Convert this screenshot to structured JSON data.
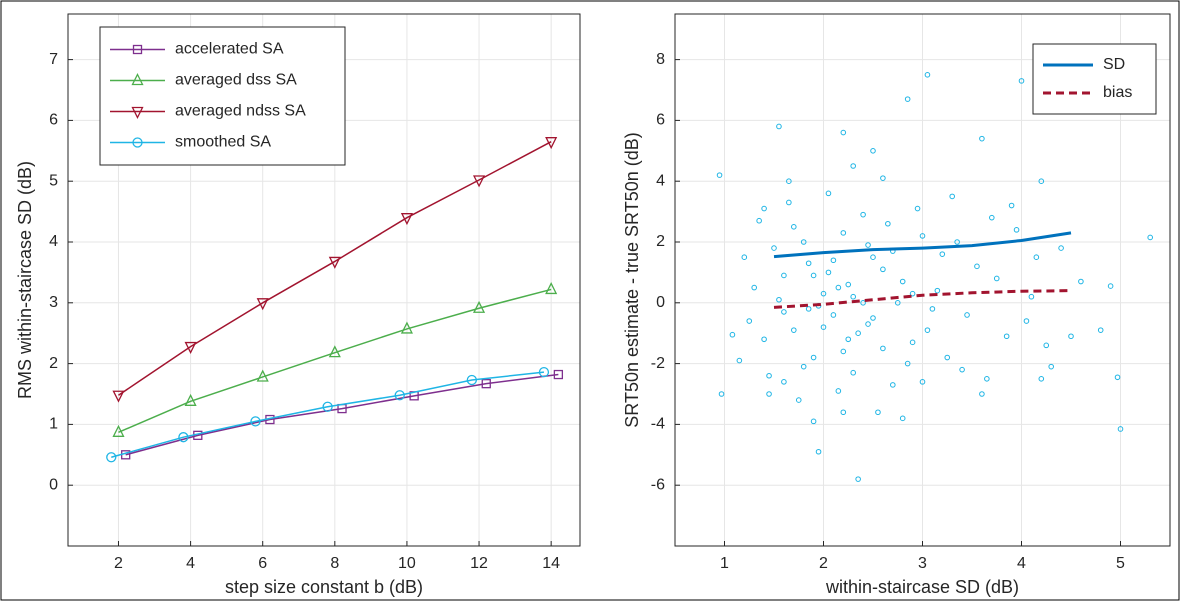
{
  "chart_data": [
    {
      "type": "line",
      "xlabel": "step size constant b   (dB)",
      "ylabel": "RMS within-staircase SD   (dB)",
      "xlim": [
        0.6,
        14.8
      ],
      "ylim": [
        -1,
        7.75
      ],
      "xticks": [
        2,
        4,
        6,
        8,
        10,
        12,
        14
      ],
      "yticks": [
        0,
        1,
        2,
        3,
        4,
        5,
        6,
        7
      ],
      "grid": true,
      "legend": "northwest",
      "series": [
        {
          "name": "accelerated SA",
          "color": "#7e2f8e",
          "marker": "square",
          "x": [
            2.2,
            4.2,
            6.2,
            8.2,
            10.2,
            12.2,
            14.2
          ],
          "values": [
            0.5,
            0.82,
            1.08,
            1.26,
            1.47,
            1.67,
            1.82
          ]
        },
        {
          "name": "averaged dss SA",
          "color": "#4cae4c",
          "marker": "triangle-up",
          "x": [
            2,
            4,
            6,
            8,
            10,
            12,
            14
          ],
          "values": [
            0.87,
            1.38,
            1.78,
            2.18,
            2.57,
            2.91,
            3.22
          ]
        },
        {
          "name": "averaged ndss SA",
          "color": "#a2142f",
          "marker": "triangle-down",
          "x": [
            2,
            4,
            6,
            8,
            10,
            12,
            14
          ],
          "values": [
            1.48,
            2.28,
            3.0,
            3.68,
            4.4,
            5.02,
            5.65
          ]
        },
        {
          "name": "smoothed SA",
          "color": "#1fb5e5",
          "marker": "circle",
          "x": [
            1.8,
            3.8,
            5.8,
            7.8,
            9.8,
            11.8,
            13.8
          ],
          "values": [
            0.46,
            0.79,
            1.05,
            1.29,
            1.48,
            1.73,
            1.86
          ]
        }
      ]
    },
    {
      "type": "scatter",
      "xlabel": "within-staircase SD   (dB)",
      "ylabel": "SRT50n estimate - true SRT50n   (dB)",
      "xlim": [
        0.5,
        5.5
      ],
      "ylim": [
        -8,
        9.5
      ],
      "xticks": [
        1,
        2,
        3,
        4,
        5
      ],
      "yticks": [
        -6,
        -4,
        -2,
        0,
        2,
        4,
        6,
        8
      ],
      "grid": true,
      "legend": "northeast",
      "color": "#1fb5e5",
      "x": [
        1.3,
        1.4,
        1.5,
        1.6,
        1.7,
        1.8,
        1.9,
        2.0,
        2.1,
        2.2,
        2.3,
        2.4,
        2.5,
        2.6,
        2.7,
        2.8,
        2.9,
        3.0,
        3.1,
        3.2,
        1.35,
        1.45,
        1.55,
        1.65,
        1.75,
        1.85,
        1.95,
        2.05,
        2.15,
        2.25,
        2.35,
        2.45,
        2.55,
        2.65,
        2.75,
        2.85,
        2.95,
        3.05,
        3.15,
        3.25,
        3.35,
        3.45,
        3.55,
        3.65,
        3.75,
        3.85,
        3.95,
        4.05,
        4.15,
        4.25,
        1.25,
        1.6,
        1.8,
        1.9,
        2.0,
        2.1,
        2.2,
        2.3,
        2.4,
        2.5,
        1.7,
        1.85,
        2.05,
        2.15,
        2.25,
        2.45,
        2.6,
        2.7,
        2.9,
        3.0,
        1.2,
        1.15,
        1.45,
        1.65,
        2.3,
        2.6,
        2.8,
        3.3,
        3.6,
        3.9,
        4.4,
        4.5,
        4.1,
        3.7,
        3.4,
        2.2,
        1.9,
        1.6,
        1.4,
        2.5,
        0.95,
        0.97,
        1.08,
        1.55,
        2.2,
        2.35,
        2.85,
        3.05,
        4.0,
        1.95,
        5.3,
        5.0,
        4.97,
        4.8,
        4.3,
        4.9,
        4.6,
        4.2,
        3.6,
        4.2
      ],
      "values": [
        0.5,
        -1.2,
        1.8,
        -0.3,
        2.5,
        -2.1,
        0.9,
        -0.8,
        1.4,
        -1.6,
        0.2,
        2.9,
        -0.5,
        1.1,
        -2.7,
        0.7,
        -1.3,
        2.2,
        -0.2,
        1.6,
        2.7,
        -2.4,
        0.1,
        3.3,
        -3.2,
        1.3,
        -0.1,
        3.6,
        -2.9,
        0.6,
        -1.0,
        1.9,
        -3.6,
        2.6,
        0.0,
        -2.0,
        3.1,
        -0.9,
        0.4,
        -1.8,
        2.0,
        -0.4,
        1.2,
        -2.5,
        0.8,
        -1.1,
        2.4,
        -0.6,
        1.5,
        -1.4,
        -0.6,
        0.9,
        2.0,
        -1.8,
        0.3,
        -0.4,
        2.3,
        -2.3,
        0.0,
        1.5,
        -0.9,
        -0.2,
        1.0,
        0.5,
        -1.2,
        -0.7,
        -1.5,
        1.7,
        0.3,
        -2.6,
        1.5,
        -1.9,
        -3.0,
        4.0,
        4.5,
        4.1,
        -3.8,
        3.5,
        -3.0,
        3.2,
        1.8,
        -1.1,
        0.2,
        2.8,
        -2.2,
        -3.6,
        -3.9,
        -2.6,
        3.1,
        5.0,
        4.2,
        -3.0,
        -1.05,
        5.8,
        5.6,
        -5.8,
        6.7,
        7.5,
        7.3,
        -4.9,
        2.15,
        -4.15,
        -2.45,
        -0.9,
        -2.1,
        0.55,
        0.7,
        -2.5,
        5.4,
        4.0
      ],
      "series": [
        {
          "name": "SD",
          "color": "#0072bd",
          "linestyle": "solid",
          "x": [
            1.5,
            2,
            2.5,
            3,
            3.5,
            4,
            4.5
          ],
          "values": [
            1.52,
            1.65,
            1.75,
            1.8,
            1.88,
            2.05,
            2.3
          ]
        },
        {
          "name": "bias",
          "color": "#a2142f",
          "linestyle": "dashed",
          "x": [
            1.5,
            2,
            2.5,
            3,
            3.5,
            4,
            4.5
          ],
          "values": [
            -0.15,
            -0.05,
            0.1,
            0.25,
            0.33,
            0.38,
            0.4
          ]
        }
      ]
    }
  ]
}
